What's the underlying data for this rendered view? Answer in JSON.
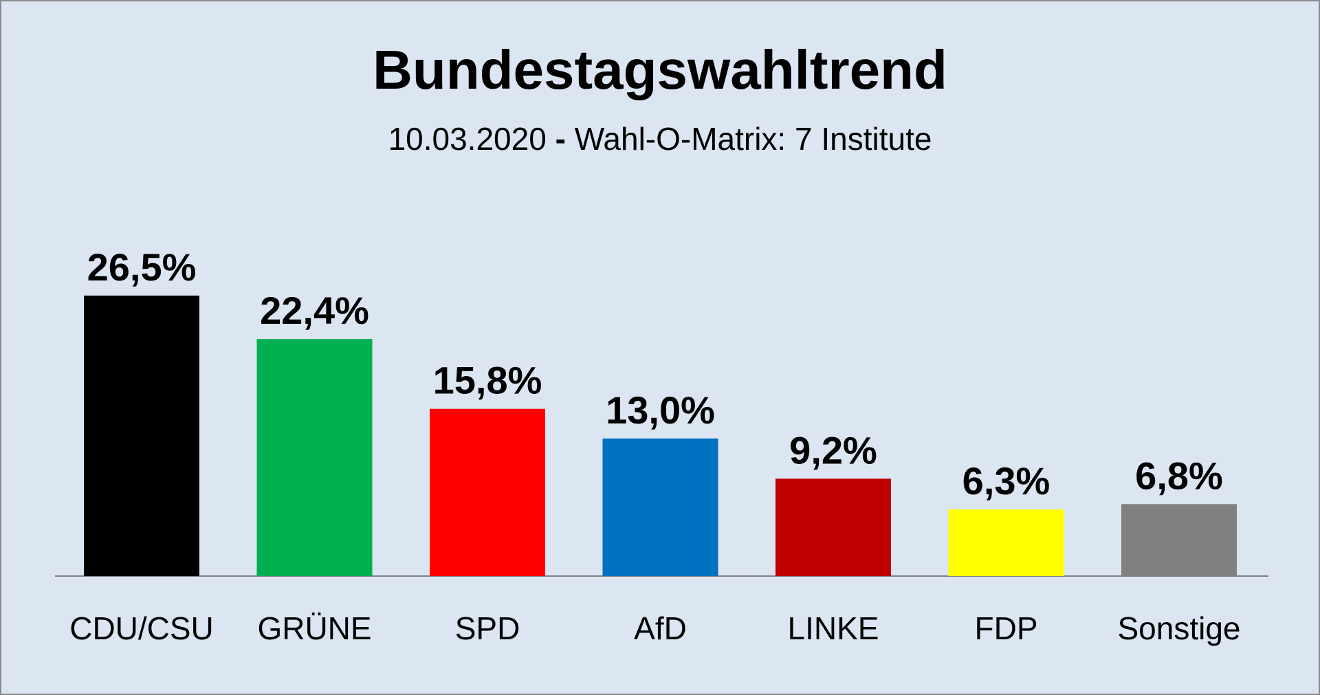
{
  "chart_data": {
    "type": "bar",
    "title": "Bundestagswahltrend",
    "subtitle": {
      "date": "10.03.2020",
      "separator": "-",
      "source": "Wahl-O-Matrix: 7 Institute"
    },
    "categories": [
      "CDU/CSU",
      "GRÜNE",
      "SPD",
      "AfD",
      "LINKE",
      "FDP",
      "Sonstige"
    ],
    "values": [
      26.5,
      22.4,
      15.8,
      13.0,
      9.2,
      6.3,
      6.8
    ],
    "value_labels": [
      "26,5%",
      "22,4%",
      "15,8%",
      "13,0%",
      "9,2%",
      "6,3%",
      "6,8%"
    ],
    "colors": [
      "#000000",
      "#00b050",
      "#ff0000",
      "#0070c0",
      "#c00000",
      "#ffff00",
      "#808080"
    ],
    "ylim": [
      0,
      26.5
    ],
    "grid": false,
    "legend": "none",
    "xlabel": "",
    "ylabel": ""
  }
}
